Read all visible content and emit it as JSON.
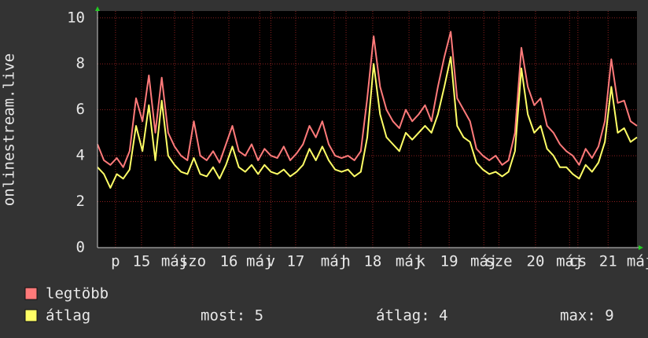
{
  "chart_data": {
    "type": "line",
    "y_label": "onlinestream.live",
    "x": [
      0,
      2,
      4,
      6,
      8,
      10,
      12,
      14,
      16,
      18,
      20,
      22,
      24,
      26,
      28,
      30,
      32,
      34,
      36,
      38,
      40,
      42,
      44,
      46,
      48,
      50,
      52,
      54,
      56,
      58,
      60,
      62,
      64,
      66,
      68,
      70,
      72,
      74,
      76,
      78,
      80,
      82,
      84,
      86,
      88,
      90,
      92,
      94,
      96,
      98,
      100,
      102,
      104,
      106,
      108,
      110,
      112,
      114,
      116,
      118,
      120,
      122,
      124,
      126,
      128,
      130,
      132,
      134,
      136,
      138,
      140,
      142,
      144,
      146,
      148,
      150,
      152,
      154,
      156,
      158,
      160,
      162,
      164,
      166,
      168
    ],
    "series": [
      {
        "name": "legtöbb",
        "color": "#ff7a7a",
        "values": [
          4.5,
          3.8,
          3.6,
          3.9,
          3.5,
          4.2,
          6.5,
          5.5,
          7.5,
          5.0,
          7.4,
          5.0,
          4.4,
          4.0,
          3.8,
          5.5,
          4.0,
          3.8,
          4.2,
          3.7,
          4.5,
          5.3,
          4.2,
          4.0,
          4.5,
          3.8,
          4.3,
          4.0,
          3.9,
          4.4,
          3.8,
          4.1,
          4.5,
          5.3,
          4.8,
          5.5,
          4.5,
          4.0,
          3.9,
          4.0,
          3.8,
          4.2,
          6.5,
          9.2,
          7.0,
          6.0,
          5.5,
          5.2,
          6.0,
          5.5,
          5.8,
          6.2,
          5.5,
          7.0,
          8.3,
          9.4,
          6.5,
          6.0,
          5.5,
          4.3,
          4.0,
          3.8,
          4.0,
          3.6,
          3.8,
          5.0,
          8.7,
          7.0,
          6.2,
          6.5,
          5.3,
          5.0,
          4.5,
          4.2,
          4.0,
          3.6,
          4.3,
          3.9,
          4.4,
          5.5,
          8.2,
          6.3,
          6.4,
          5.5,
          5.3
        ]
      },
      {
        "name": "átlag",
        "color": "#ffff66",
        "values": [
          3.5,
          3.2,
          2.6,
          3.2,
          3.0,
          3.4,
          5.3,
          4.2,
          6.2,
          3.8,
          6.4,
          4.0,
          3.6,
          3.3,
          3.2,
          3.9,
          3.2,
          3.1,
          3.5,
          3.0,
          3.6,
          4.4,
          3.5,
          3.3,
          3.6,
          3.2,
          3.6,
          3.3,
          3.2,
          3.4,
          3.1,
          3.3,
          3.6,
          4.3,
          3.8,
          4.4,
          3.8,
          3.4,
          3.3,
          3.4,
          3.1,
          3.3,
          4.8,
          8.0,
          5.8,
          4.8,
          4.5,
          4.2,
          5.0,
          4.7,
          5.0,
          5.3,
          5.0,
          5.8,
          7.0,
          8.3,
          5.3,
          4.8,
          4.6,
          3.7,
          3.4,
          3.2,
          3.3,
          3.1,
          3.3,
          4.2,
          7.8,
          5.8,
          5.0,
          5.3,
          4.3,
          4.0,
          3.5,
          3.5,
          3.2,
          3.0,
          3.6,
          3.3,
          3.7,
          4.6,
          7.0,
          5.0,
          5.2,
          4.6,
          4.8
        ]
      }
    ],
    "stats": [
      "most: 5",
      "átlag: 4",
      "max: 9"
    ],
    "xlim": [
      0,
      168
    ],
    "xticks": [
      {
        "value": 5.6,
        "label": "p"
      },
      {
        "value": 13.7,
        "label": "15"
      },
      {
        "value": 24,
        "label": "máj"
      },
      {
        "value": 29.6,
        "label": "szo"
      },
      {
        "value": 40.9,
        "label": "16"
      },
      {
        "value": 50.5,
        "label": "máj"
      },
      {
        "value": 54,
        "label": "v"
      },
      {
        "value": 61.7,
        "label": "17"
      },
      {
        "value": 73.7,
        "label": "máj"
      },
      {
        "value": 77.4,
        "label": "h"
      },
      {
        "value": 85.7,
        "label": "18"
      },
      {
        "value": 97,
        "label": "máj"
      },
      {
        "value": 100.7,
        "label": "k"
      },
      {
        "value": 109.5,
        "label": "19"
      },
      {
        "value": 120.3,
        "label": "máj"
      },
      {
        "value": 125,
        "label": "sze"
      },
      {
        "value": 136.4,
        "label": "20"
      },
      {
        "value": 147,
        "label": "máj"
      },
      {
        "value": 149.6,
        "label": "cs"
      },
      {
        "value": 159,
        "label": "21"
      },
      {
        "value": 169,
        "label": "máj"
      }
    ],
    "ylim": [
      0,
      10.3
    ],
    "yticks": [
      0,
      2,
      4,
      6,
      8,
      10
    ],
    "grid": true
  }
}
